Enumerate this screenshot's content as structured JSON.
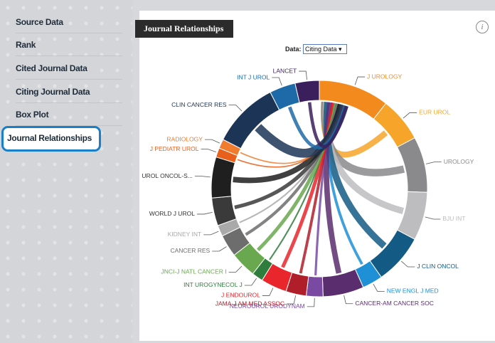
{
  "sidebar": {
    "items": [
      "Source Data",
      "Rank",
      "Cited Journal Data",
      "Citing Journal Data",
      "Box Plot",
      "Journal Relationships"
    ]
  },
  "panel": {
    "title": "Journal Relationships",
    "info": "i",
    "data_label": "Data:",
    "select": "Citing Data ▾"
  },
  "chart_data": {
    "type": "chord",
    "categories": [
      "J UROLOGY",
      "EUR UROL",
      "UROLOGY",
      "BJU INT",
      "J CLIN ONCOL",
      "NEW ENGL J MED",
      "CANCER-AM CANCER SOC",
      "NEUROUROL URODYNAM",
      "JAMA-J AM MED ASSOC",
      "J ENDOUROL",
      "INT UROGYNECOL J",
      "JNCI-J NATL CANCER I",
      "CANCER RES",
      "KIDNEY INT",
      "WORLD J UROL",
      "UROL ONCOL-S...",
      "J PEDIATR UROL",
      "RADIOLOGY",
      "CLIN CANCER RES",
      "INT J UROL",
      "LANCET"
    ],
    "values": [
      38,
      24,
      30,
      26,
      27,
      11,
      22,
      9,
      11,
      14,
      6,
      14,
      12,
      6,
      15,
      22,
      5,
      5,
      36,
      14,
      13
    ],
    "colors": [
      "#f28a1e",
      "#f6a52a",
      "#8a8a8c",
      "#bdbdbf",
      "#135a85",
      "#1f8fd6",
      "#5a2d6e",
      "#7a4aa3",
      "#b01e2a",
      "#e8262b",
      "#2f7d3c",
      "#6aa84f",
      "#6d6d6d",
      "#a9a9a9",
      "#3a3a3a",
      "#1f1f1f",
      "#e8601c",
      "#f07c30",
      "#1c3557",
      "#1e6aa8",
      "#3a1f5c"
    ]
  }
}
